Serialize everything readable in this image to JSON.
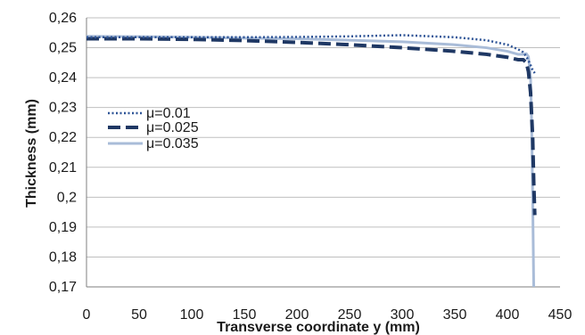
{
  "chart_data": {
    "type": "line",
    "title": "",
    "xlabel": "Transverse coordinate y (mm)",
    "ylabel": "Thickness (mm)",
    "xlim": [
      0,
      450
    ],
    "ylim": [
      0.17,
      0.26
    ],
    "grid": "horizontal",
    "legend_position": "left",
    "x_ticks": [
      0,
      50,
      100,
      150,
      200,
      250,
      300,
      350,
      400,
      450
    ],
    "x_tick_labels": [
      "0",
      "50",
      "100",
      "150",
      "200",
      "250",
      "300",
      "350",
      "400",
      "450"
    ],
    "y_ticks": [
      0.17,
      0.18,
      0.19,
      0.2,
      0.21,
      0.22,
      0.23,
      0.24,
      0.25,
      0.26
    ],
    "y_tick_labels": [
      "0,17",
      "0,18",
      "0,19",
      "0,2",
      "0,21",
      "0,22",
      "0,23",
      "0,24",
      "0,25",
      "0,26"
    ],
    "series": [
      {
        "name": "μ=0.01",
        "style": "dotted",
        "color": "#2f5597",
        "points": [
          [
            0,
            0.2535
          ],
          [
            50,
            0.2535
          ],
          [
            100,
            0.2535
          ],
          [
            150,
            0.2535
          ],
          [
            200,
            0.2536
          ],
          [
            250,
            0.2538
          ],
          [
            300,
            0.2542
          ],
          [
            350,
            0.2535
          ],
          [
            380,
            0.2525
          ],
          [
            400,
            0.251
          ],
          [
            410,
            0.2495
          ],
          [
            415,
            0.2485
          ],
          [
            418,
            0.247
          ],
          [
            421,
            0.245
          ],
          [
            424,
            0.2425
          ],
          [
            426,
            0.2415
          ]
        ]
      },
      {
        "name": "μ=0.025",
        "style": "dashed",
        "color": "#1f3864",
        "points": [
          [
            0,
            0.253
          ],
          [
            50,
            0.253
          ],
          [
            100,
            0.2528
          ],
          [
            150,
            0.2524
          ],
          [
            200,
            0.2518
          ],
          [
            250,
            0.251
          ],
          [
            300,
            0.25
          ],
          [
            350,
            0.2488
          ],
          [
            380,
            0.2478
          ],
          [
            400,
            0.2468
          ],
          [
            410,
            0.246
          ],
          [
            415,
            0.246
          ],
          [
            418,
            0.245
          ],
          [
            420,
            0.242
          ],
          [
            422,
            0.235
          ],
          [
            424,
            0.22
          ],
          [
            425,
            0.205
          ],
          [
            426,
            0.194
          ]
        ]
      },
      {
        "name": "μ=0.035",
        "style": "solid",
        "color": "#a9bcd8",
        "points": [
          [
            0,
            0.2538
          ],
          [
            50,
            0.2537
          ],
          [
            100,
            0.2535
          ],
          [
            150,
            0.2532
          ],
          [
            200,
            0.253
          ],
          [
            250,
            0.2525
          ],
          [
            300,
            0.252
          ],
          [
            350,
            0.251
          ],
          [
            380,
            0.25
          ],
          [
            400,
            0.2488
          ],
          [
            410,
            0.2478
          ],
          [
            415,
            0.2478
          ],
          [
            418,
            0.248
          ],
          [
            420,
            0.247
          ],
          [
            422,
            0.24
          ],
          [
            423,
            0.225
          ],
          [
            424,
            0.2
          ],
          [
            425,
            0.17
          ]
        ]
      }
    ]
  }
}
